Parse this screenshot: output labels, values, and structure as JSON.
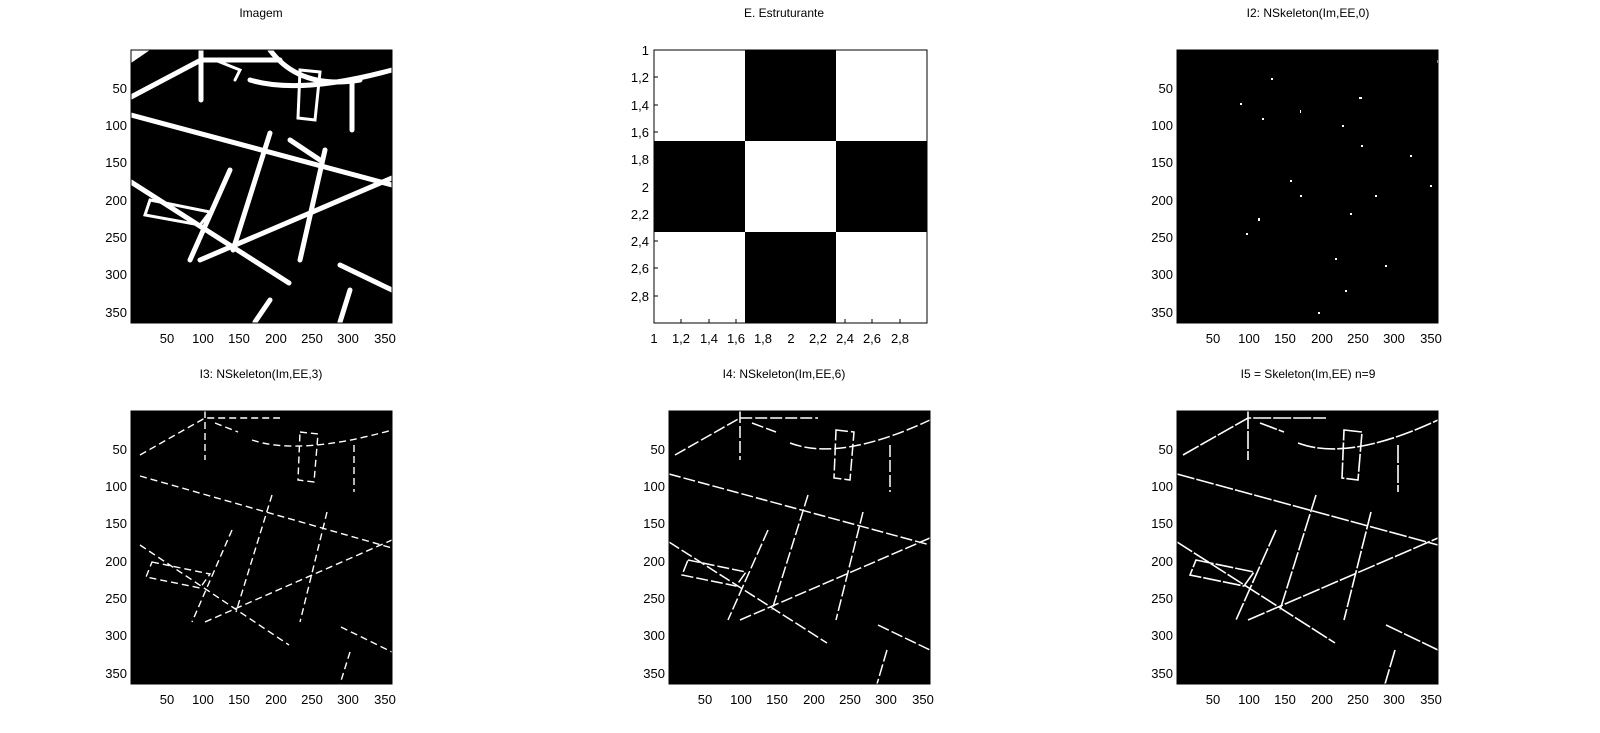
{
  "figure": {
    "panels": [
      {
        "id": "imagem",
        "title": "Imagem",
        "content": "binary-road-map",
        "xticks": [
          "50",
          "100",
          "150",
          "200",
          "250",
          "300",
          "350"
        ],
        "yticks": [
          "50",
          "100",
          "150",
          "200",
          "250",
          "300",
          "350"
        ]
      },
      {
        "id": "estruturante",
        "title": "E. Estruturante",
        "content": "checkerboard-3x3",
        "matrix": [
          [
            1,
            0,
            1
          ],
          [
            0,
            1,
            0
          ],
          [
            1,
            0,
            1
          ]
        ],
        "xticks": [
          "1",
          "1,2",
          "1,4",
          "1,6",
          "1,8",
          "2",
          "2,2",
          "2,4",
          "2,6",
          "2,8"
        ],
        "yticks": [
          "1",
          "1,2",
          "1,4",
          "1,6",
          "1,8",
          "2",
          "2,2",
          "2,4",
          "2,6",
          "2,8"
        ]
      },
      {
        "id": "i2",
        "title": "I2: NSkeleton(Im,EE,0)",
        "content": "sparse-dots",
        "xticks": [
          "50",
          "100",
          "150",
          "200",
          "250",
          "300",
          "350"
        ],
        "yticks": [
          "50",
          "100",
          "150",
          "200",
          "250",
          "300",
          "350"
        ]
      },
      {
        "id": "i3",
        "title": "I3: NSkeleton(Im,EE,3)",
        "content": "skeleton-thin",
        "xticks": [
          "50",
          "100",
          "150",
          "200",
          "250",
          "300",
          "350"
        ],
        "yticks": [
          "50",
          "100",
          "150",
          "200",
          "250",
          "300",
          "350"
        ]
      },
      {
        "id": "i4",
        "title": "I4: NSkeleton(Im,EE,6)",
        "content": "skeleton-medium",
        "xticks": [
          "50",
          "100",
          "150",
          "200",
          "250",
          "300",
          "350"
        ],
        "yticks": [
          "50",
          "100",
          "150",
          "200",
          "250",
          "300",
          "350"
        ]
      },
      {
        "id": "i5",
        "title": "I5 = Skeleton(Im,EE) n=9",
        "content": "skeleton-full",
        "xticks": [
          "50",
          "100",
          "150",
          "200",
          "250",
          "300",
          "350"
        ],
        "yticks": [
          "50",
          "100",
          "150",
          "200",
          "250",
          "300",
          "350"
        ]
      }
    ],
    "colors": {
      "background": "#ffffff",
      "foreground": "#000000",
      "image_bg": "#000000",
      "image_fg": "#ffffff"
    }
  }
}
